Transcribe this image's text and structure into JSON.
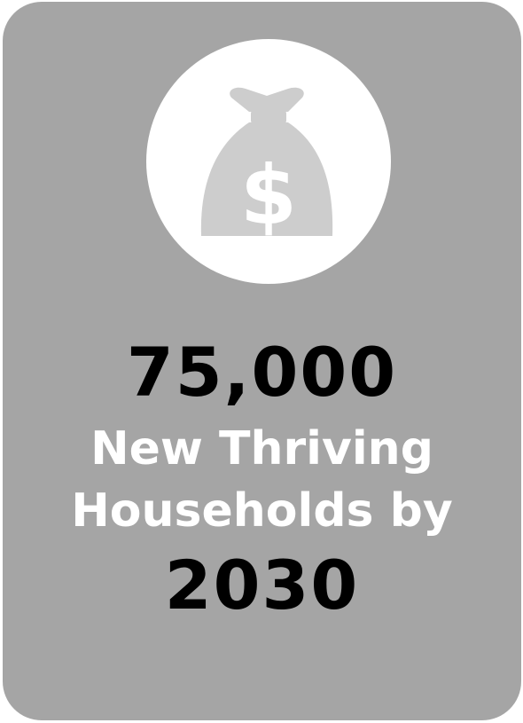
{
  "card": {
    "background_color": "#a5a5a5",
    "icon": "money-bag-icon",
    "icon_symbol": "$",
    "stat_value": "75,000",
    "stat_line_1": "New Thriving",
    "stat_line_2": "Households by",
    "stat_year": "2030"
  }
}
